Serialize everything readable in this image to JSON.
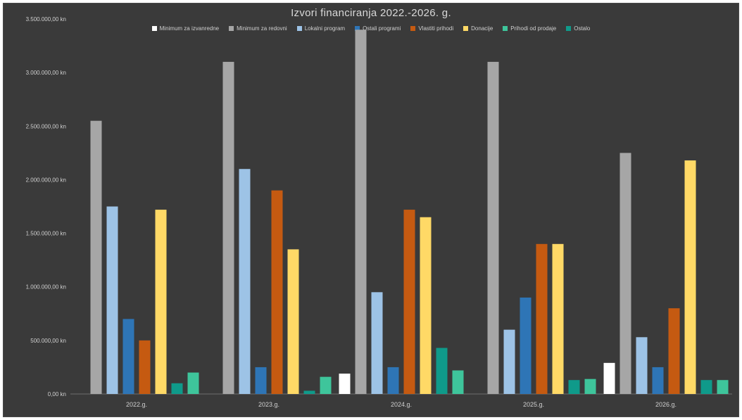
{
  "chart_data": {
    "type": "bar",
    "title": "Izvori financiranja 2022.-2026. g.",
    "categories": [
      "2022.g.",
      "2023.g.",
      "2024.g.",
      "2025.g.",
      "2026.g."
    ],
    "ylim": [
      0,
      3500000
    ],
    "yticks": [
      0,
      500000,
      1000000,
      1500000,
      2000000,
      2500000,
      3000000,
      3500000
    ],
    "ytick_labels": [
      "0,00 kn",
      "500.000,00 kn",
      "1.000.000,00 kn",
      "1.500.000,00 kn",
      "2.000.000,00 kn",
      "2.500.000,00 kn",
      "3.000.000,00 kn",
      "3.500.000,00 kn"
    ],
    "grid": false,
    "legend_position": "top",
    "series": [
      {
        "name": "Minimum za izvanredne",
        "color": "#ffffff",
        "values": [
          0,
          0,
          190000,
          0,
          290000
        ]
      },
      {
        "name": "Minimum za redovni",
        "color": "#a6a6a6",
        "values": [
          2550000,
          3100000,
          3400000,
          3100000,
          2250000
        ]
      },
      {
        "name": "Lokalni program",
        "color": "#9dc3e6",
        "values": [
          1750000,
          2100000,
          950000,
          600000,
          530000
        ]
      },
      {
        "name": "Ostali programi",
        "color": "#2e75b6",
        "values": [
          700000,
          250000,
          250000,
          900000,
          250000
        ]
      },
      {
        "name": "Vlastiti prihodi",
        "color": "#c55a11",
        "values": [
          500000,
          1900000,
          1720000,
          1400000,
          800000
        ]
      },
      {
        "name": "Donacije",
        "color": "#ffd966",
        "values": [
          1720000,
          1350000,
          1650000,
          1400000,
          2180000
        ]
      },
      {
        "name": "Ostalo",
        "color": "#0f9a8a",
        "values": [
          100000,
          30000,
          430000,
          130000,
          130000
        ]
      },
      {
        "name": "Prihodi od prodaje",
        "color": "#3ec59b",
        "values": [
          200000,
          160000,
          220000,
          140000,
          130000
        ]
      }
    ],
    "legend_labels": [
      "Minimum za izvanredne",
      "Minimum za redovni",
      "Lokalni program",
      "Ostali programi",
      "Vlastiti prihodi",
      "Donacije",
      "Prihodi od prodaje",
      "Ostalo"
    ]
  }
}
